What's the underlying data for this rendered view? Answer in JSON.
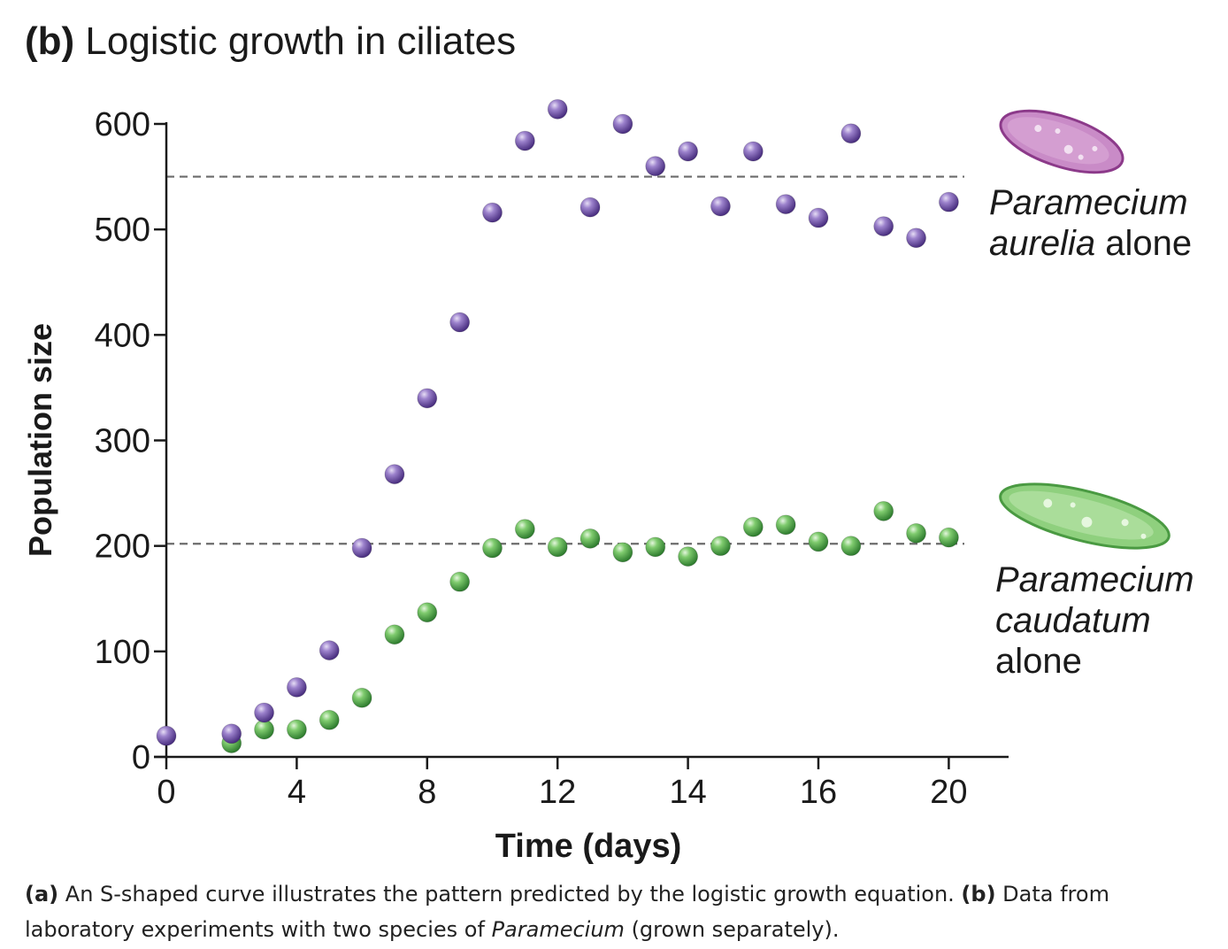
{
  "figure": {
    "panel_label": "(b)",
    "title": "Logistic growth in ciliates"
  },
  "chart_data": {
    "type": "scatter",
    "title": "Logistic growth in ciliates",
    "xlabel": "Time (days)",
    "ylabel": "Population size",
    "x_ticks": [
      0,
      4,
      8,
      12,
      14,
      16,
      20
    ],
    "y_ticks": [
      0,
      100,
      200,
      300,
      400,
      500,
      600
    ],
    "ylim": [
      0,
      600
    ],
    "carrying_capacity_lines": [
      550,
      202
    ],
    "series": [
      {
        "name_line1": "Paramecium",
        "name_line2_italic": "aurelia",
        "name_line2_rest": " alone",
        "color": "#7b5cb0",
        "points": [
          [
            0,
            20
          ],
          [
            1,
            22
          ],
          [
            1.5,
            42
          ],
          [
            2,
            66
          ],
          [
            2.5,
            101
          ],
          [
            3,
            198
          ],
          [
            3.5,
            268
          ],
          [
            4,
            340
          ],
          [
            4.5,
            412
          ],
          [
            5,
            516
          ],
          [
            5.5,
            584
          ],
          [
            6,
            614
          ],
          [
            6.5,
            521
          ],
          [
            7,
            600
          ],
          [
            7.5,
            560
          ],
          [
            8,
            574
          ],
          [
            8.5,
            522
          ],
          [
            9,
            574
          ],
          [
            9.5,
            524
          ],
          [
            10,
            511
          ],
          [
            10.5,
            591
          ],
          [
            11,
            503
          ],
          [
            11.5,
            492
          ],
          [
            12,
            526
          ]
        ]
      },
      {
        "name_line1": "Paramecium",
        "name_line2": "caudatum",
        "name_line3": "alone",
        "color": "#5fb45a",
        "points": [
          [
            1,
            13
          ],
          [
            1.5,
            26
          ],
          [
            2,
            26
          ],
          [
            2.5,
            35
          ],
          [
            3,
            56
          ],
          [
            3.5,
            116
          ],
          [
            4,
            137
          ],
          [
            4.5,
            166
          ],
          [
            5,
            198
          ],
          [
            5.5,
            216
          ],
          [
            6,
            199
          ],
          [
            6.5,
            207
          ],
          [
            7,
            194
          ],
          [
            7.5,
            199
          ],
          [
            8,
            190
          ],
          [
            8.5,
            200
          ],
          [
            9,
            218
          ],
          [
            9.5,
            220
          ],
          [
            10,
            204
          ],
          [
            10.5,
            200
          ],
          [
            11,
            233
          ],
          [
            11.5,
            212
          ],
          [
            12,
            208
          ]
        ]
      }
    ],
    "grid": false,
    "legend": "labels beside series at right"
  },
  "caption": {
    "a_label": "(a)",
    "a_text": " An S-shaped curve illustrates the pattern predicted by the logistic growth equation. ",
    "b_label": "(b)",
    "b_text": " Data from laboratory experiments with two species of ",
    "species_italic": "Paramecium",
    "end_text": " (grown separately)."
  }
}
